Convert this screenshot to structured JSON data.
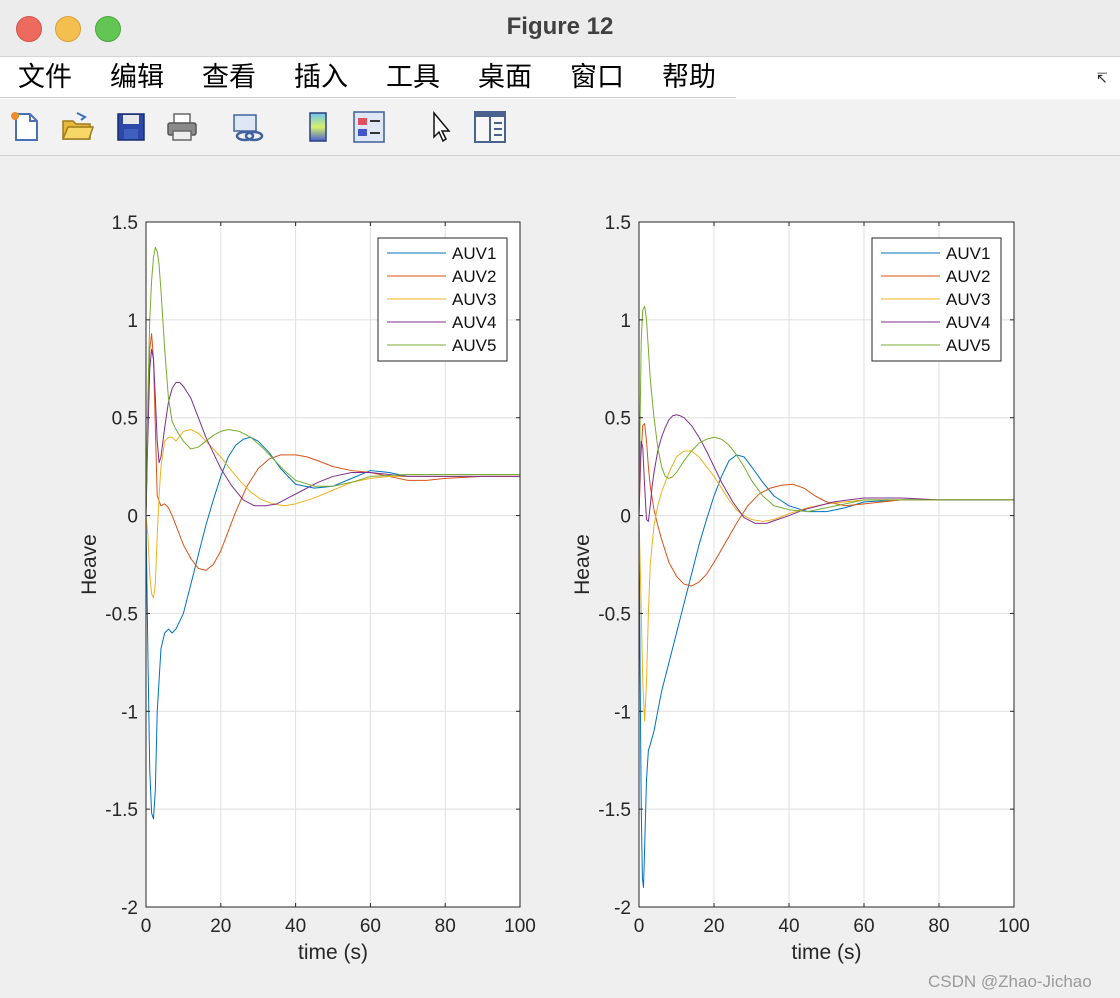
{
  "window": {
    "title": "Figure 12"
  },
  "menu": [
    "文件",
    "编辑",
    "查看",
    "插入",
    "工具",
    "桌面",
    "窗口",
    "帮助"
  ],
  "toolbar": [
    {
      "icon": "new-figure-icon"
    },
    {
      "icon": "open-file-icon"
    },
    {
      "icon": "save-icon"
    },
    {
      "icon": "print-icon"
    },
    {
      "icon": "link-icon"
    },
    {
      "icon": "colorbar-icon"
    },
    {
      "icon": "legend-icon"
    },
    {
      "icon": "pointer-icon"
    },
    {
      "icon": "property-editor-icon"
    }
  ],
  "watermark": "CSDN @Zhao-Jichao",
  "chart_data": [
    {
      "type": "line",
      "xlabel": "time (s)",
      "ylabel": "Heave",
      "xlim": [
        0,
        100
      ],
      "ylim": [
        -2,
        1.5
      ],
      "xticks": [
        0,
        20,
        40,
        60,
        80,
        100
      ],
      "yticks": [
        -2,
        -1.5,
        -1,
        -0.5,
        0,
        0.5,
        1,
        1.5
      ],
      "xtick_labels": [
        "0",
        "20",
        "40",
        "60",
        "80",
        "100"
      ],
      "ytick_labels": [
        "-2",
        "-1.5",
        "-1",
        "-0.5",
        "0",
        "0.5",
        "1",
        "1.5"
      ],
      "grid": true,
      "legend": "top-right",
      "series": [
        {
          "name": "AUV1",
          "color": "#0072bd",
          "x": [
            0,
            0.5,
            1,
            1.5,
            2,
            2.5,
            3,
            4,
            5,
            6,
            7,
            8,
            10,
            12,
            14,
            16,
            18,
            20,
            22,
            24,
            26,
            28,
            30,
            33,
            36,
            40,
            45,
            50,
            55,
            60,
            65,
            70,
            80,
            90,
            100
          ],
          "y": [
            0,
            -0.7,
            -1.3,
            -1.52,
            -1.55,
            -1.4,
            -1.0,
            -0.68,
            -0.6,
            -0.58,
            -0.6,
            -0.58,
            -0.5,
            -0.35,
            -0.2,
            -0.05,
            0.08,
            0.2,
            0.3,
            0.36,
            0.39,
            0.4,
            0.38,
            0.32,
            0.24,
            0.16,
            0.14,
            0.15,
            0.19,
            0.23,
            0.22,
            0.2,
            0.2,
            0.2,
            0.2
          ]
        },
        {
          "name": "AUV2",
          "color": "#d95319",
          "x": [
            0,
            0.5,
            1,
            1.5,
            2,
            2.5,
            3,
            4,
            5,
            6,
            7,
            8,
            10,
            12,
            14,
            16,
            18,
            20,
            22,
            24,
            27,
            30,
            33,
            36,
            40,
            43,
            46,
            50,
            55,
            60,
            65,
            70,
            75,
            80,
            90,
            100
          ],
          "y": [
            0,
            0.5,
            0.85,
            0.93,
            0.8,
            0.45,
            0.1,
            0.05,
            0.06,
            0.04,
            0.0,
            -0.05,
            -0.15,
            -0.22,
            -0.27,
            -0.28,
            -0.25,
            -0.18,
            -0.08,
            0.02,
            0.15,
            0.24,
            0.29,
            0.31,
            0.31,
            0.3,
            0.28,
            0.25,
            0.23,
            0.22,
            0.2,
            0.18,
            0.18,
            0.19,
            0.2,
            0.2
          ]
        },
        {
          "name": "AUV3",
          "color": "#edb120",
          "x": [
            0,
            0.5,
            1,
            1.5,
            2,
            2.5,
            3,
            3.5,
            4,
            5,
            6,
            7,
            8,
            10,
            12,
            14,
            16,
            18,
            20,
            22,
            25,
            28,
            31,
            34,
            37,
            40,
            45,
            50,
            55,
            60,
            65,
            70,
            80,
            90,
            100
          ],
          "y": [
            0,
            -0.1,
            -0.3,
            -0.4,
            -0.42,
            -0.35,
            -0.1,
            0.1,
            0.25,
            0.38,
            0.4,
            0.4,
            0.38,
            0.43,
            0.44,
            0.42,
            0.38,
            0.34,
            0.3,
            0.25,
            0.18,
            0.12,
            0.08,
            0.06,
            0.05,
            0.06,
            0.09,
            0.13,
            0.17,
            0.19,
            0.2,
            0.2,
            0.2,
            0.2,
            0.2
          ]
        },
        {
          "name": "AUV4",
          "color": "#7e2f8e",
          "x": [
            0,
            0.5,
            1,
            1.5,
            2,
            2.5,
            3,
            3.5,
            4,
            5,
            6,
            7,
            8,
            9,
            10,
            12,
            14,
            16,
            18,
            20,
            23,
            26,
            29,
            32,
            35,
            38,
            42,
            46,
            50,
            55,
            60,
            65,
            70,
            80,
            90,
            100
          ],
          "y": [
            0,
            0.4,
            0.75,
            0.85,
            0.8,
            0.6,
            0.38,
            0.27,
            0.3,
            0.45,
            0.58,
            0.65,
            0.68,
            0.68,
            0.66,
            0.6,
            0.5,
            0.4,
            0.32,
            0.24,
            0.15,
            0.08,
            0.05,
            0.05,
            0.06,
            0.09,
            0.13,
            0.17,
            0.2,
            0.22,
            0.22,
            0.21,
            0.2,
            0.2,
            0.2,
            0.2
          ]
        },
        {
          "name": "AUV5",
          "color": "#77ac30",
          "x": [
            0,
            0.5,
            1,
            1.5,
            2,
            2.5,
            3,
            3.5,
            4,
            5,
            6,
            7,
            8,
            10,
            12,
            14,
            16,
            18,
            20,
            22,
            25,
            28,
            31,
            34,
            37,
            40,
            45,
            50,
            55,
            60,
            70,
            80,
            90,
            100
          ],
          "y": [
            0,
            0.6,
            1.0,
            1.2,
            1.32,
            1.37,
            1.35,
            1.28,
            1.15,
            0.85,
            0.6,
            0.48,
            0.44,
            0.38,
            0.34,
            0.35,
            0.38,
            0.41,
            0.43,
            0.44,
            0.43,
            0.4,
            0.35,
            0.29,
            0.23,
            0.18,
            0.15,
            0.15,
            0.17,
            0.2,
            0.21,
            0.21,
            0.21,
            0.21
          ]
        }
      ]
    },
    {
      "type": "line",
      "xlabel": "time (s)",
      "ylabel": "Heave",
      "xlim": [
        0,
        100
      ],
      "ylim": [
        -2,
        1.5
      ],
      "xticks": [
        0,
        20,
        40,
        60,
        80,
        100
      ],
      "yticks": [
        -2,
        -1.5,
        -1,
        -0.5,
        0,
        0.5,
        1,
        1.5
      ],
      "xtick_labels": [
        "0",
        "20",
        "40",
        "60",
        "80",
        "100"
      ],
      "ytick_labels": [
        "-2",
        "-1.5",
        "-1",
        "-0.5",
        "0",
        "0.5",
        "1",
        "1.5"
      ],
      "grid": true,
      "legend": "top-right",
      "series": [
        {
          "name": "AUV1",
          "color": "#0072bd",
          "x": [
            0,
            0.3,
            0.6,
            0.9,
            1.2,
            1.5,
            2,
            2.5,
            3,
            4,
            5,
            6,
            8,
            10,
            12,
            14,
            16,
            18,
            20,
            22,
            24,
            26,
            28,
            30,
            33,
            36,
            40,
            45,
            50,
            55,
            60,
            70,
            80,
            90,
            100
          ],
          "y": [
            0,
            -0.8,
            -1.5,
            -1.85,
            -1.9,
            -1.7,
            -1.35,
            -1.2,
            -1.17,
            -1.1,
            -1.0,
            -0.9,
            -0.75,
            -0.6,
            -0.45,
            -0.3,
            -0.15,
            -0.02,
            0.1,
            0.2,
            0.28,
            0.31,
            0.3,
            0.25,
            0.17,
            0.1,
            0.05,
            0.02,
            0.02,
            0.04,
            0.07,
            0.08,
            0.08,
            0.08,
            0.08
          ]
        },
        {
          "name": "AUV2",
          "color": "#d95319",
          "x": [
            0,
            0.5,
            1,
            1.5,
            2,
            2.5,
            3,
            4,
            5,
            6,
            7,
            8,
            10,
            12,
            14,
            16,
            18,
            20,
            23,
            26,
            29,
            32,
            35,
            38,
            41,
            44,
            47,
            50,
            55,
            60,
            65,
            70,
            80,
            90,
            100
          ],
          "y": [
            0,
            0.3,
            0.46,
            0.47,
            0.38,
            0.25,
            0.15,
            0.03,
            -0.05,
            -0.12,
            -0.18,
            -0.24,
            -0.31,
            -0.35,
            -0.36,
            -0.34,
            -0.3,
            -0.24,
            -0.14,
            -0.04,
            0.05,
            0.11,
            0.14,
            0.155,
            0.16,
            0.14,
            0.1,
            0.07,
            0.05,
            0.06,
            0.07,
            0.08,
            0.08,
            0.08,
            0.08
          ]
        },
        {
          "name": "AUV3",
          "color": "#edb120",
          "x": [
            0,
            0.5,
            1,
            1.5,
            2,
            2.5,
            3,
            4,
            5,
            6,
            8,
            10,
            12,
            14,
            16,
            18,
            20,
            22,
            24,
            26,
            28,
            30,
            33,
            36,
            40,
            45,
            50,
            55,
            60,
            70,
            80,
            90,
            100
          ],
          "y": [
            0,
            -0.4,
            -0.85,
            -1.05,
            -0.85,
            -0.5,
            -0.25,
            -0.05,
            0.05,
            0.12,
            0.22,
            0.3,
            0.33,
            0.33,
            0.3,
            0.25,
            0.2,
            0.14,
            0.08,
            0.03,
            0.0,
            -0.02,
            -0.03,
            -0.02,
            0.01,
            0.04,
            0.06,
            0.07,
            0.08,
            0.08,
            0.08,
            0.08,
            0.08
          ]
        },
        {
          "name": "AUV4",
          "color": "#7e2f8e",
          "x": [
            0,
            0.3,
            0.6,
            1,
            1.5,
            2,
            2.5,
            3,
            3.5,
            4,
            5,
            6,
            7,
            8,
            9,
            10,
            11,
            12,
            14,
            16,
            18,
            20,
            22,
            25,
            28,
            31,
            34,
            37,
            40,
            44,
            48,
            52,
            56,
            60,
            70,
            80,
            90,
            100
          ],
          "y": [
            0,
            0.25,
            0.38,
            0.35,
            0.15,
            -0.02,
            -0.03,
            0.05,
            0.15,
            0.22,
            0.33,
            0.4,
            0.45,
            0.49,
            0.51,
            0.515,
            0.51,
            0.5,
            0.46,
            0.4,
            0.33,
            0.25,
            0.17,
            0.07,
            -0.01,
            -0.04,
            -0.04,
            -0.02,
            0.0,
            0.03,
            0.05,
            0.07,
            0.08,
            0.09,
            0.09,
            0.08,
            0.08,
            0.08
          ]
        },
        {
          "name": "AUV5",
          "color": "#77ac30",
          "x": [
            0,
            0.3,
            0.6,
            1,
            1.5,
            2,
            2.5,
            3,
            4,
            5,
            6,
            7,
            8,
            9,
            10,
            11,
            12,
            14,
            16,
            18,
            20,
            22,
            24,
            26,
            28,
            30,
            33,
            36,
            40,
            45,
            50,
            55,
            60,
            70,
            80,
            90,
            100
          ],
          "y": [
            0,
            0.5,
            0.9,
            1.05,
            1.07,
            1.0,
            0.85,
            0.7,
            0.5,
            0.35,
            0.25,
            0.2,
            0.19,
            0.2,
            0.22,
            0.25,
            0.28,
            0.33,
            0.37,
            0.39,
            0.4,
            0.39,
            0.36,
            0.31,
            0.25,
            0.18,
            0.1,
            0.05,
            0.03,
            0.02,
            0.04,
            0.06,
            0.08,
            0.08,
            0.08,
            0.08,
            0.08
          ]
        }
      ]
    }
  ]
}
